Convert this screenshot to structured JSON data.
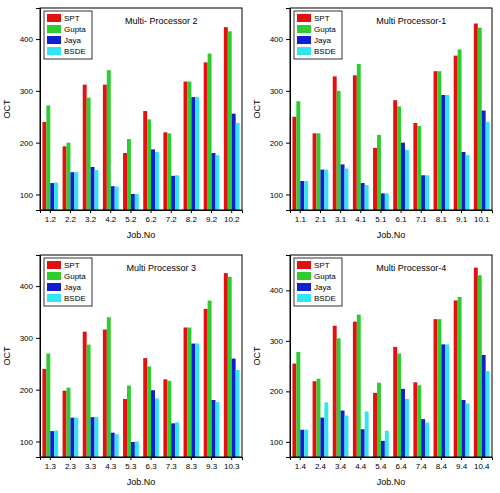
{
  "chart_data": [
    {
      "type": "bar",
      "title": "Multi- Processor 2",
      "x_label": "Job.No",
      "y_label": "OCT",
      "categories": [
        "1.2",
        "2.2",
        "3.2",
        "4.2",
        "5.2",
        "6.2",
        "7.2",
        "8.2",
        "9.2",
        "10.2"
      ],
      "series": [
        {
          "name": "SPT",
          "color": "#e31010",
          "values": [
            240,
            193,
            312,
            312,
            180,
            261,
            220,
            318,
            355,
            423
          ]
        },
        {
          "name": "Gupta",
          "color": "#2ecc2e",
          "values": [
            272,
            200,
            287,
            340,
            207,
            245,
            218,
            318,
            372,
            415
          ]
        },
        {
          "name": "Jaya",
          "color": "#1020d0",
          "values": [
            122,
            143,
            153,
            116,
            101,
            187,
            136,
            288,
            180,
            256
          ]
        },
        {
          "name": "BSDE",
          "color": "#33e4f4",
          "values": [
            123,
            143,
            147,
            115,
            101,
            182,
            137,
            288,
            176,
            238
          ]
        }
      ],
      "ylim": [
        70,
        460
      ],
      "yticks": [
        100,
        200,
        300,
        400
      ],
      "legend": "upper left"
    },
    {
      "type": "bar",
      "title": "Multi Processor-1",
      "x_label": "Job.No",
      "y_label": "OCT",
      "categories": [
        "1.1",
        "2.1",
        "3.1",
        "4.1",
        "5.1",
        "6.1",
        "7.1",
        "8.1",
        "9.1",
        "10.1"
      ],
      "series": [
        {
          "name": "SPT",
          "color": "#e31010",
          "values": [
            250,
            218,
            328,
            330,
            190,
            282,
            238,
            338,
            368,
            430
          ]
        },
        {
          "name": "Gupta",
          "color": "#2ecc2e",
          "values": [
            280,
            218,
            300,
            352,
            215,
            270,
            232,
            338,
            380,
            422
          ]
        },
        {
          "name": "Jaya",
          "color": "#1020d0",
          "values": [
            126,
            148,
            158,
            122,
            102,
            200,
            137,
            292,
            182,
            262
          ]
        },
        {
          "name": "BSDE",
          "color": "#33e4f4",
          "values": [
            126,
            148,
            150,
            118,
            102,
            186,
            137,
            292,
            176,
            240
          ]
        }
      ],
      "ylim": [
        70,
        460
      ],
      "yticks": [
        100,
        200,
        300,
        400
      ],
      "legend": "upper left"
    },
    {
      "type": "bar",
      "title": "Multi Processor 3",
      "x_label": "Job.No",
      "y_label": "OCT",
      "categories": [
        "1.3",
        "2.3",
        "3.3",
        "4.3",
        "5.3",
        "6.3",
        "7.3",
        "8.3",
        "9.3",
        "10.3"
      ],
      "series": [
        {
          "name": "SPT",
          "color": "#e31010",
          "values": [
            240,
            198,
            312,
            316,
            182,
            261,
            220,
            320,
            356,
            425
          ]
        },
        {
          "name": "Gupta",
          "color": "#2ecc2e",
          "values": [
            270,
            204,
            287,
            340,
            208,
            245,
            217,
            320,
            372,
            418
          ]
        },
        {
          "name": "Jaya",
          "color": "#1020d0",
          "values": [
            120,
            146,
            147,
            117,
            99,
            199,
            135,
            289,
            180,
            260
          ]
        },
        {
          "name": "BSDE",
          "color": "#33e4f4",
          "values": [
            121,
            146,
            147,
            114,
            100,
            183,
            137,
            289,
            176,
            238
          ]
        }
      ],
      "ylim": [
        70,
        460
      ],
      "yticks": [
        100,
        200,
        300,
        400
      ],
      "legend": "upper left"
    },
    {
      "type": "bar",
      "title": "Multi Processor-4",
      "x_label": "Job.No",
      "y_label": "OCT",
      "categories": [
        "1.4",
        "2.4",
        "3.4",
        "4.4",
        "5.4",
        "6.4",
        "7.4",
        "8.4",
        "9.4",
        "10.4"
      ],
      "series": [
        {
          "name": "SPT",
          "color": "#e31010",
          "values": [
            255,
            220,
            330,
            338,
            197,
            288,
            218,
            343,
            380,
            445
          ]
        },
        {
          "name": "Gupta",
          "color": "#2ecc2e",
          "values": [
            278,
            225,
            305,
            352,
            217,
            275,
            212,
            343,
            387,
            430
          ]
        },
        {
          "name": "Jaya",
          "color": "#1020d0",
          "values": [
            124,
            148,
            162,
            125,
            102,
            205,
            145,
            293,
            183,
            272
          ]
        },
        {
          "name": "BSDE",
          "color": "#33e4f4",
          "values": [
            124,
            178,
            152,
            160,
            122,
            185,
            138,
            293,
            176,
            240
          ]
        }
      ],
      "ylim": [
        70,
        470
      ],
      "yticks": [
        100,
        200,
        300,
        400
      ],
      "legend": "upper left"
    }
  ]
}
